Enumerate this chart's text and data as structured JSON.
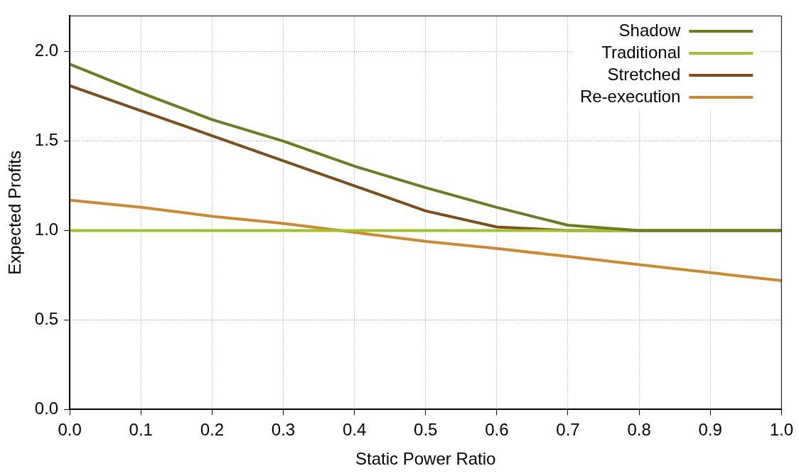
{
  "chart_data": {
    "type": "line",
    "xlabel": "Static Power Ratio",
    "ylabel": "Expected Profits",
    "x": [
      0,
      0.1,
      0.2,
      0.3,
      0.4,
      0.5,
      0.6,
      0.7,
      0.8,
      0.9,
      1.0
    ],
    "series": [
      {
        "name": "Shadow",
        "color": "#6b7b22",
        "values": [
          1.93,
          1.77,
          1.62,
          1.5,
          1.36,
          1.24,
          1.13,
          1.03,
          1.0,
          1.0,
          1.0
        ]
      },
      {
        "name": "Traditional",
        "color": "#a0c030",
        "values": [
          1.0,
          1.0,
          1.0,
          1.0,
          1.0,
          1.0,
          1.0,
          1.0,
          1.0,
          1.0,
          1.0
        ]
      },
      {
        "name": "Stretched",
        "color": "#7a4e1e",
        "values": [
          1.81,
          1.67,
          1.53,
          1.39,
          1.25,
          1.11,
          1.02,
          1.0,
          1.0,
          1.0,
          1.0
        ]
      },
      {
        "name": "Re-execution",
        "color": "#cc8833",
        "values": [
          1.17,
          1.13,
          1.08,
          1.04,
          0.99,
          0.94,
          0.9,
          0.855,
          0.81,
          0.765,
          0.72
        ]
      }
    ],
    "xlim": [
      0,
      1.0
    ],
    "xticks": [
      {
        "value": 0,
        "label": "0.0"
      },
      0.1,
      0.2,
      0.3,
      0.4,
      0.5,
      0.6,
      0.7,
      0.8,
      0.9,
      {
        "value": 1,
        "label": "1.0"
      }
    ],
    "ylim": [
      0,
      2.2
    ],
    "yticks": [
      {
        "value": 0,
        "label": "0.0"
      },
      0.5,
      {
        "value": 1,
        "label": "1.0"
      },
      1.5,
      {
        "value": 2,
        "label": "2.0"
      }
    ],
    "grid": true,
    "legend": "top right",
    "marker": "none",
    "line_style": "solid"
  }
}
